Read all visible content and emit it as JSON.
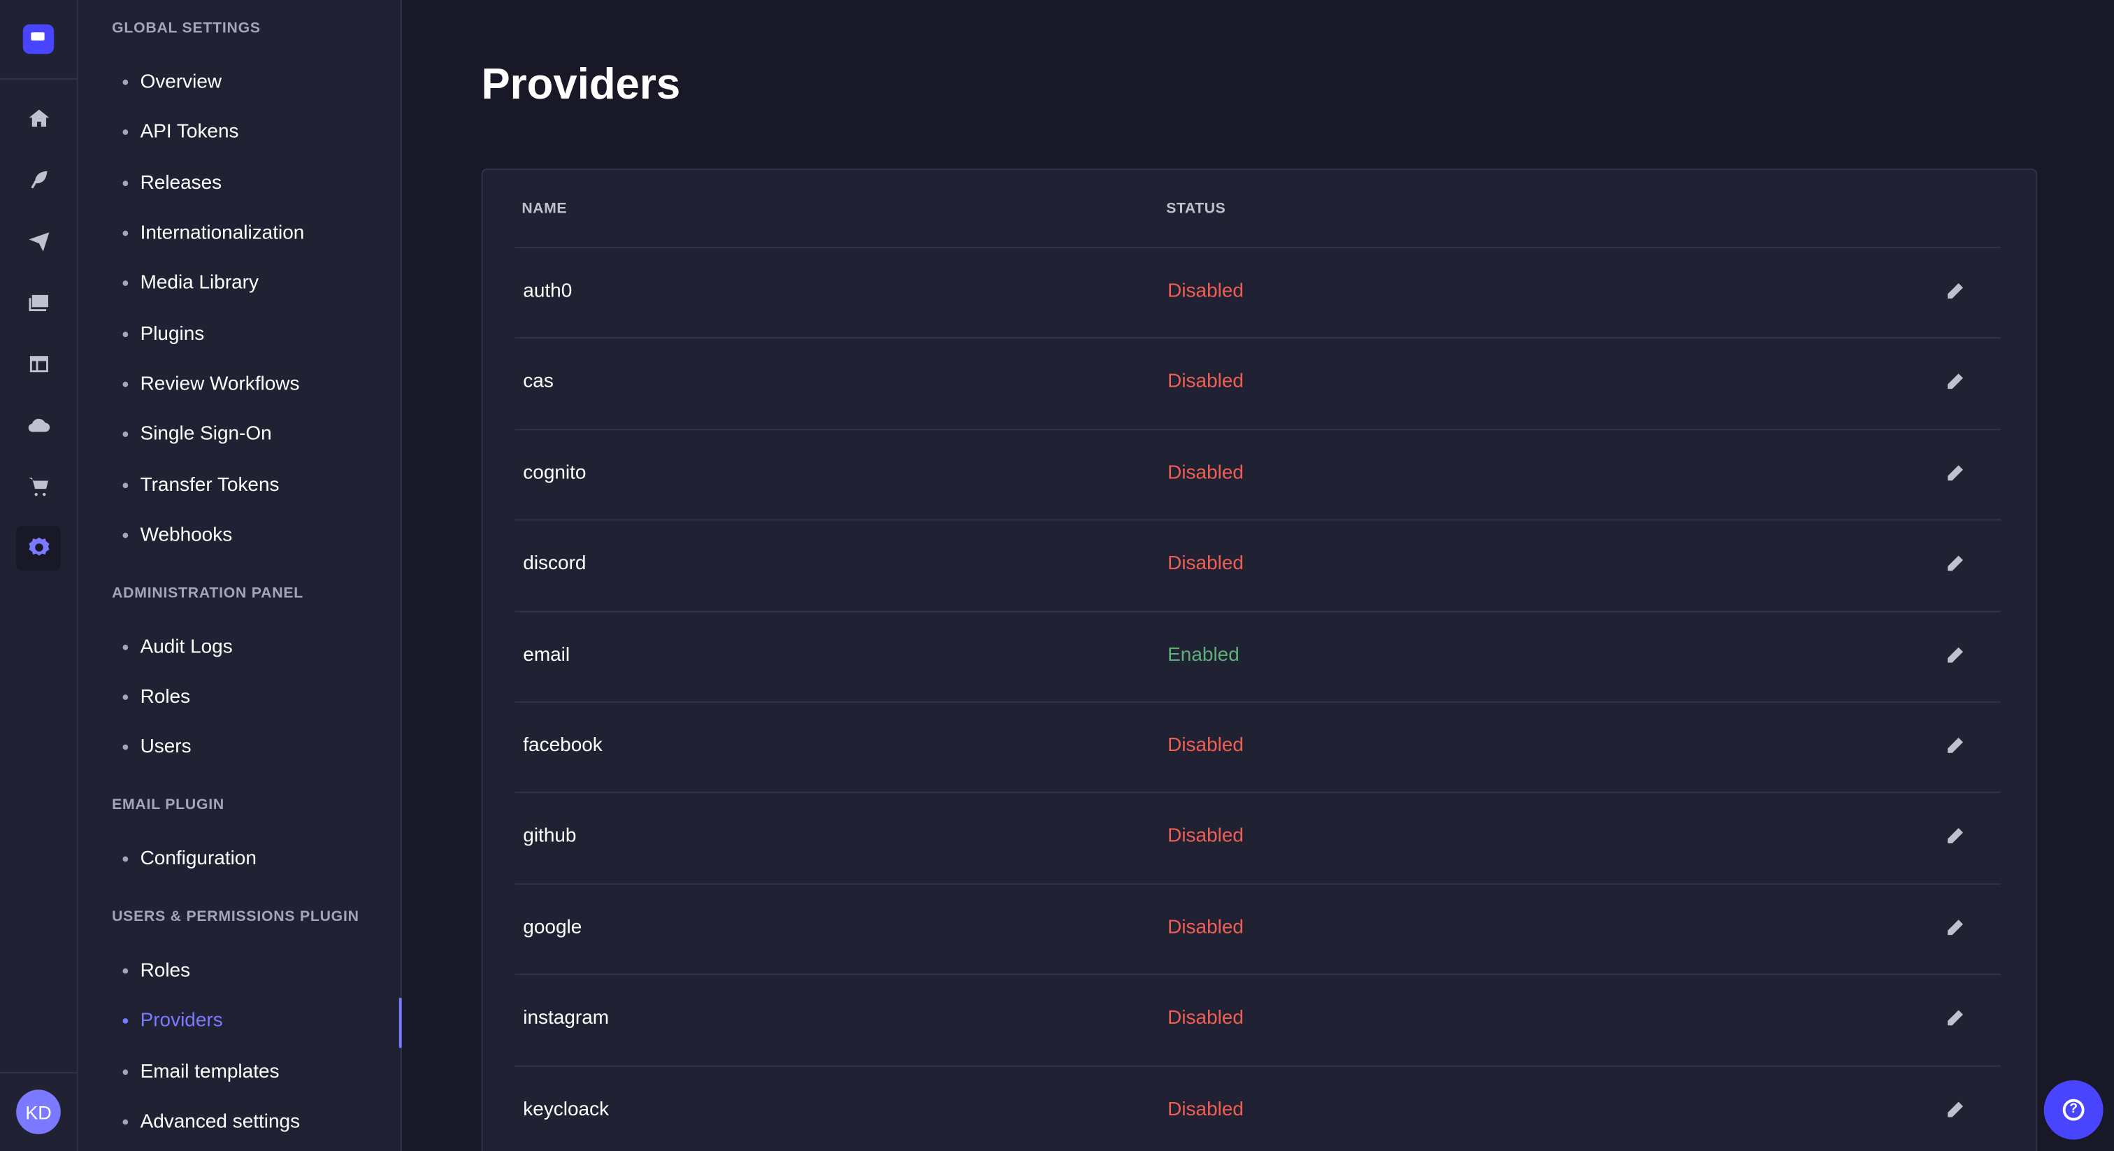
{
  "colors": {
    "accent": "#7b79ff",
    "brand": "#4945ff",
    "disabled": "#ee5e52",
    "enabled": "#5cb176"
  },
  "rail": {
    "icons": [
      "home-icon",
      "feather-icon",
      "paper-plane-icon",
      "images-icon",
      "layout-icon",
      "cloud-icon",
      "cart-icon",
      "gear-icon"
    ],
    "avatar": "KD"
  },
  "sidebar": {
    "sections": [
      {
        "title": "GLOBAL SETTINGS",
        "items": [
          "Overview",
          "API Tokens",
          "Releases",
          "Internationalization",
          "Media Library",
          "Plugins",
          "Review Workflows",
          "Single Sign-On",
          "Transfer Tokens",
          "Webhooks"
        ]
      },
      {
        "title": "ADMINISTRATION PANEL",
        "items": [
          "Audit Logs",
          "Roles",
          "Users"
        ]
      },
      {
        "title": "EMAIL PLUGIN",
        "items": [
          "Configuration"
        ]
      },
      {
        "title": "USERS & PERMISSIONS PLUGIN",
        "items": [
          "Roles",
          "Providers",
          "Email templates",
          "Advanced settings"
        ]
      }
    ],
    "active": "Providers"
  },
  "page": {
    "title": "Providers"
  },
  "table": {
    "headers": {
      "name": "NAME",
      "status": "STATUS"
    },
    "rows": [
      {
        "name": "auth0",
        "status": "Disabled"
      },
      {
        "name": "cas",
        "status": "Disabled"
      },
      {
        "name": "cognito",
        "status": "Disabled"
      },
      {
        "name": "discord",
        "status": "Disabled"
      },
      {
        "name": "email",
        "status": "Enabled"
      },
      {
        "name": "facebook",
        "status": "Disabled"
      },
      {
        "name": "github",
        "status": "Disabled"
      },
      {
        "name": "google",
        "status": "Disabled"
      },
      {
        "name": "instagram",
        "status": "Disabled"
      },
      {
        "name": "keycloack",
        "status": "Disabled"
      }
    ]
  }
}
